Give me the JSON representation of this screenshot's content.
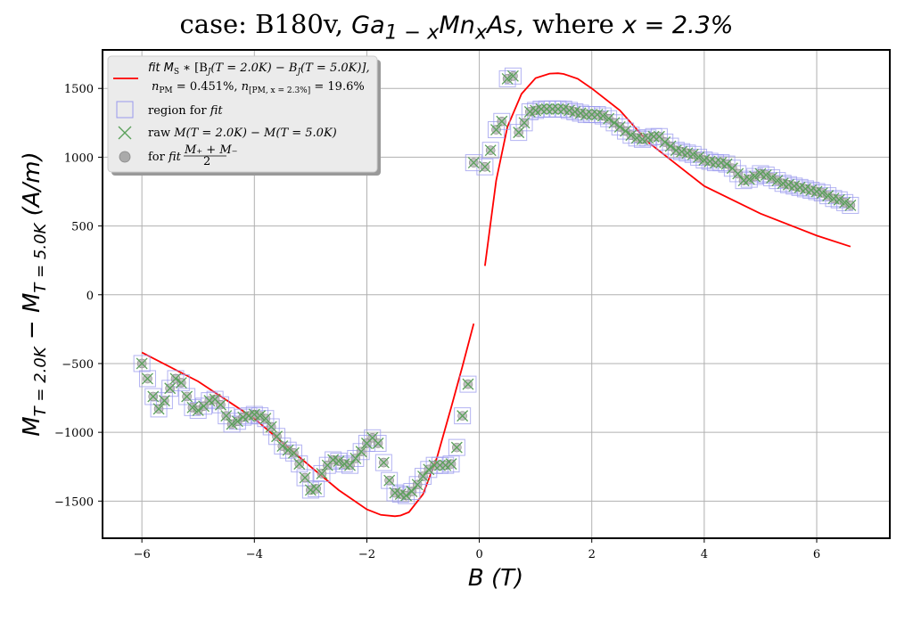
{
  "title": {
    "prefix": "case: B180v, ",
    "formula": "Ga",
    "formula_sub1": "1 − x",
    "formula_mid": "Mn",
    "formula_sub2": "x",
    "formula_end": "As",
    "suffix": ", where ",
    "condition": "x = 2.3%"
  },
  "chart_data": {
    "type": "scatter",
    "xlabel": "B (T)",
    "ylabel": "M_{T = 2.0K} − M_{T = 5.0K} (A/m)",
    "xlim": [
      -6.7,
      7.3
    ],
    "ylim": [
      -1770,
      1780
    ],
    "x_ticks": [
      "−6",
      "−4",
      "−2",
      "0",
      "2",
      "4",
      "6"
    ],
    "y_ticks": [
      "−1500",
      "−1000",
      "−500",
      "0",
      "500",
      "1000",
      "1500"
    ],
    "x_tick_values": [
      -6,
      -4,
      -2,
      0,
      2,
      4,
      6
    ],
    "y_tick_values": [
      -1500,
      -1000,
      -500,
      0,
      500,
      1000,
      1500
    ],
    "grid": true,
    "legend_position": "top-left",
    "colors": {
      "fit": "#ff0000",
      "region_marker": "#9999ee",
      "raw_marker": "#5aa05a",
      "avg_marker": "#888888"
    },
    "legend": {
      "fit_line1": "fit M_S ∗ [B_J(T = 2.0K) − B_J(T = 5.0K)],",
      "fit_line2": "n_PM = 0.451%,  n_[PM, x=2.3%] = 19.6%",
      "region": "region for fit",
      "raw": "raw M(T = 2.0K) − M(T = 5.0K)",
      "avg": "for fit (M₊ + M₋)/2"
    },
    "series": [
      {
        "name": "raw M(T = 2.0K) − M(T = 5.0K)",
        "x": [
          -6.0,
          -5.9,
          -5.8,
          -5.7,
          -5.6,
          -5.5,
          -5.4,
          -5.3,
          -5.2,
          -5.1,
          -5.0,
          -4.9,
          -4.8,
          -4.7,
          -4.6,
          -4.5,
          -4.4,
          -4.3,
          -4.2,
          -4.1,
          -4.0,
          -3.9,
          -3.8,
          -3.7,
          -3.6,
          -3.5,
          -3.4,
          -3.3,
          -3.2,
          -3.1,
          -3.0,
          -2.9,
          -2.8,
          -2.7,
          -2.6,
          -2.5,
          -2.4,
          -2.3,
          -2.2,
          -2.1,
          -2.0,
          -1.9,
          -1.8,
          -1.7,
          -1.6,
          -1.5,
          -1.4,
          -1.3,
          -1.2,
          -1.1,
          -1.0,
          -0.9,
          -0.8,
          -0.7,
          -0.6,
          -0.5,
          -0.4,
          -0.3,
          -0.2,
          -0.1,
          0.1,
          0.2,
          0.3,
          0.4,
          0.5,
          0.6,
          0.7,
          0.8,
          0.9,
          1.0,
          1.1,
          1.2,
          1.3,
          1.4,
          1.5,
          1.6,
          1.7,
          1.8,
          1.9,
          2.0,
          2.1,
          2.2,
          2.3,
          2.4,
          2.5,
          2.6,
          2.7,
          2.8,
          2.9,
          3.0,
          3.1,
          3.2,
          3.3,
          3.4,
          3.5,
          3.6,
          3.7,
          3.8,
          3.9,
          4.0,
          4.1,
          4.2,
          4.3,
          4.4,
          4.5,
          4.6,
          4.7,
          4.8,
          4.9,
          5.0,
          5.1,
          5.2,
          5.3,
          5.4,
          5.5,
          5.6,
          5.7,
          5.8,
          5.9,
          6.0,
          6.1,
          6.2,
          6.3,
          6.4,
          6.5,
          6.6
        ],
        "y": [
          -500,
          -610,
          -740,
          -830,
          -770,
          -680,
          -610,
          -640,
          -740,
          -820,
          -840,
          -810,
          -770,
          -760,
          -800,
          -880,
          -940,
          -920,
          -890,
          -880,
          -870,
          -880,
          -900,
          -960,
          -1030,
          -1100,
          -1130,
          -1150,
          -1230,
          -1330,
          -1420,
          -1410,
          -1300,
          -1240,
          -1200,
          -1210,
          -1230,
          -1240,
          -1190,
          -1140,
          -1080,
          -1040,
          -1080,
          -1220,
          -1350,
          -1440,
          -1450,
          -1460,
          -1430,
          -1380,
          -1320,
          -1270,
          -1240,
          -1240,
          -1240,
          -1230,
          -1110,
          -880,
          -650,
          960,
          930,
          1050,
          1200,
          1260,
          1570,
          1590,
          1180,
          1250,
          1330,
          1340,
          1350,
          1350,
          1350,
          1350,
          1350,
          1340,
          1330,
          1320,
          1310,
          1310,
          1310,
          1300,
          1280,
          1250,
          1220,
          1190,
          1160,
          1140,
          1130,
          1140,
          1150,
          1150,
          1110,
          1080,
          1050,
          1040,
          1030,
          1020,
          1000,
          980,
          970,
          960,
          960,
          950,
          920,
          880,
          830,
          840,
          860,
          880,
          870,
          850,
          830,
          810,
          800,
          790,
          780,
          770,
          760,
          750,
          740,
          720,
          700,
          690,
          670,
          650
        ]
      },
      {
        "name": "fit M_S ∗ [B_J(T = 2.0K) − B_J(T = 5.0K)]",
        "x": [
          -6.0,
          -5.0,
          -4.0,
          -3.0,
          -2.5,
          -2.0,
          -1.75,
          -1.5,
          -1.4,
          -1.25,
          -1.0,
          -0.75,
          -0.5,
          -0.3,
          -0.1,
          0.1,
          0.3,
          0.5,
          0.75,
          1.0,
          1.25,
          1.4,
          1.5,
          1.75,
          2.0,
          2.5,
          3.0,
          4.0,
          5.0,
          6.0,
          6.6
        ],
        "y": [
          -420,
          -630,
          -900,
          -1250,
          -1420,
          -1560,
          -1600,
          -1610,
          -1605,
          -1580,
          -1450,
          -1180,
          -820,
          -520,
          -210,
          210,
          830,
          1220,
          1460,
          1575,
          1608,
          1610,
          1605,
          1570,
          1500,
          1340,
          1110,
          790,
          590,
          430,
          350
        ]
      }
    ]
  }
}
